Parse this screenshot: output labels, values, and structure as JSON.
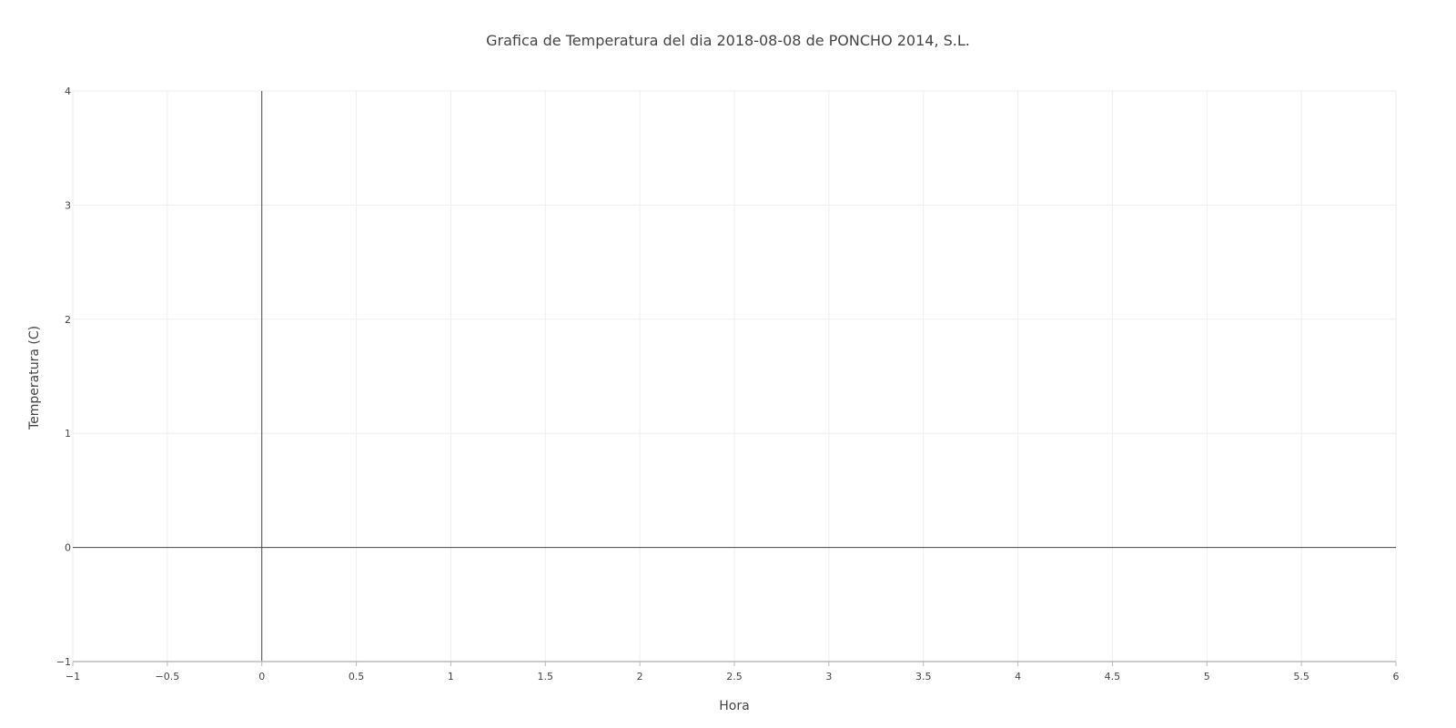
{
  "chart_data": {
    "type": "line",
    "title": "Grafica de Temperatura del dia 2018-08-08 de PONCHO 2014, S.L.",
    "xlabel": "Hora",
    "ylabel": "Temperatura (C)",
    "xlim": [
      -1,
      6
    ],
    "ylim": [
      -1,
      4
    ],
    "x_ticks": [
      -1,
      -0.5,
      0,
      0.5,
      1,
      1.5,
      2,
      2.5,
      3,
      3.5,
      4,
      4.5,
      5,
      5.5,
      6
    ],
    "x_tick_labels": [
      "−1",
      "−0.5",
      "0",
      "0.5",
      "1",
      "1.5",
      "2",
      "2.5",
      "3",
      "3.5",
      "4",
      "4.5",
      "5",
      "5.5",
      "6"
    ],
    "y_ticks": [
      -1,
      0,
      1,
      2,
      3,
      4
    ],
    "y_tick_labels": [
      "−1",
      "0",
      "1",
      "2",
      "3",
      "4"
    ],
    "grid": true,
    "zero_lines": true,
    "series": [],
    "colors": {
      "grid": "#eeeeee",
      "zeroline": "#444444",
      "axis_line": "#bbbbbb",
      "text": "#444444"
    }
  }
}
